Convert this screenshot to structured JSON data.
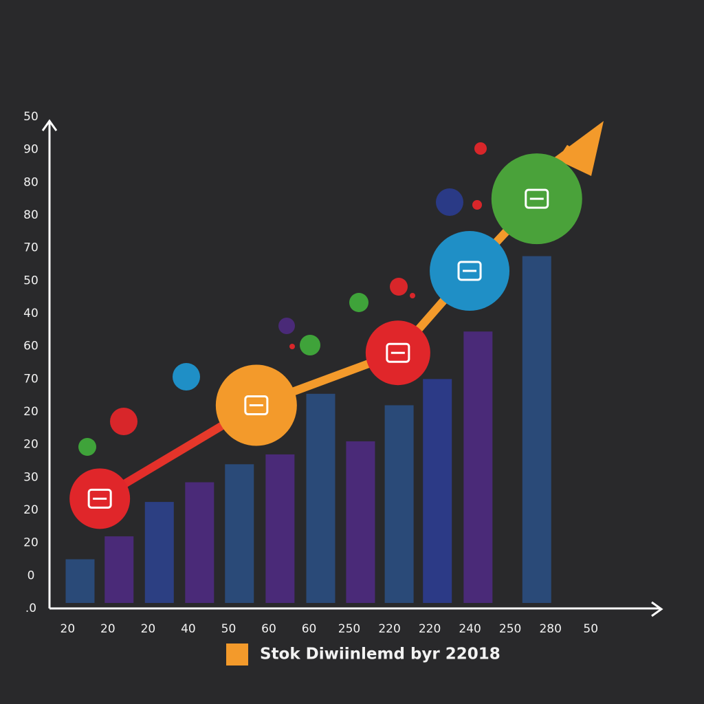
{
  "chart_data": {
    "type": "bar",
    "xlim": [
      -0.45,
      14.5
    ],
    "ylim": [
      0,
      15
    ],
    "xticks": [
      {
        "value": 0,
        "label": "20"
      },
      {
        "value": 1,
        "label": "20"
      },
      {
        "value": 2,
        "label": "20"
      },
      {
        "value": 3,
        "label": "40"
      },
      {
        "value": 4,
        "label": "50"
      },
      {
        "value": 5,
        "label": "60"
      },
      {
        "value": 6,
        "label": "60"
      },
      {
        "value": 7,
        "label": "250"
      },
      {
        "value": 8,
        "label": "220"
      },
      {
        "value": 9,
        "label": "220"
      },
      {
        "value": 10,
        "label": "240"
      },
      {
        "value": 11,
        "label": "250"
      },
      {
        "value": 12,
        "label": "280"
      },
      {
        "value": 13,
        "label": "50"
      }
    ],
    "yticks": [
      {
        "value": 0,
        "label": ".0"
      },
      {
        "value": 1,
        "label": "0"
      },
      {
        "value": 2,
        "label": "20"
      },
      {
        "value": 3,
        "label": "20"
      },
      {
        "value": 4,
        "label": "30"
      },
      {
        "value": 5,
        "label": "20"
      },
      {
        "value": 6,
        "label": "20"
      },
      {
        "value": 7,
        "label": "70"
      },
      {
        "value": 8,
        "label": "60"
      },
      {
        "value": 9,
        "label": "40"
      },
      {
        "value": 10,
        "label": "50"
      },
      {
        "value": 11,
        "label": "70"
      },
      {
        "value": 12,
        "label": "80"
      },
      {
        "value": 13,
        "label": "80"
      },
      {
        "value": 14,
        "label": "90"
      },
      {
        "value": 15,
        "label": "50"
      }
    ],
    "series": [
      {
        "type": "bar",
        "colors": [
          "#2a4a78",
          "#4a2a78",
          "#2c3f82",
          "#4a2a78",
          "#2a4a78",
          "#4a2a78",
          "#2a4a78",
          "#4a2a78",
          "#2a4a78",
          "#2c3a86",
          "#4a2a78",
          "#2a4a78"
        ],
        "x": [
          0.31,
          1.28,
          2.28,
          3.28,
          4.27,
          5.28,
          6.29,
          7.28,
          8.24,
          9.19,
          10.2,
          11.66
        ],
        "values": [
          1.5,
          2.2,
          3.25,
          3.85,
          4.4,
          4.7,
          6.55,
          5.1,
          6.2,
          7.0,
          8.45,
          10.75
        ]
      },
      {
        "type": "line",
        "name": "Stok Diwiinlemd byr 22018",
        "color": "#f39a2b",
        "x": [
          0.8,
          4.69,
          8.21,
          9.99,
          11.66
        ],
        "values": [
          3.35,
          6.2,
          7.8,
          10.3,
          12.5
        ],
        "marker_colors": [
          "#e0262a",
          "#f39a2b",
          "#e0262a",
          "#1f8fc6",
          "#4aa23a"
        ]
      }
    ]
  }
}
